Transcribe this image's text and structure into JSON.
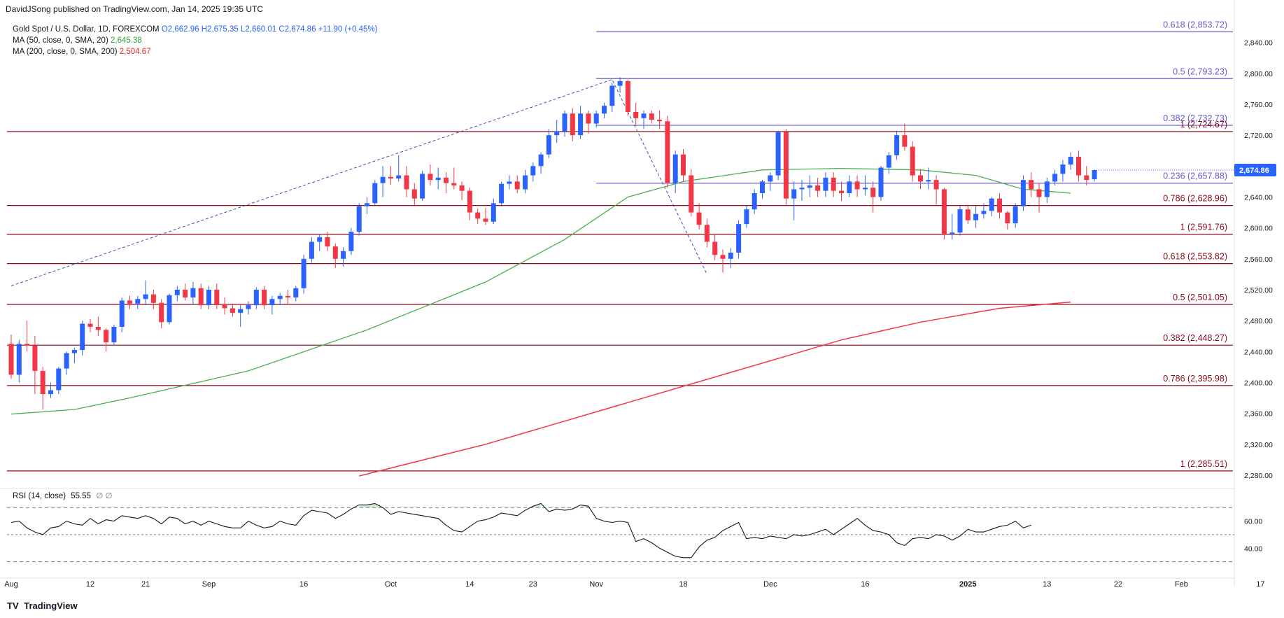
{
  "header": {
    "published": "DavidJSong published on TradingView.com, Jan 14, 2025 19:35 UTC"
  },
  "legend": {
    "symbol": "Gold Spot / U.S. Dollar, 1D, FOREXCOM",
    "open": "O2,662.96",
    "high": "H2,675.35",
    "low": "L2,660.01",
    "close": "C2,674.86",
    "change": "+11.90 (+0.45%)",
    "ma50_label": "MA (50, close, 0, SMA, 20)",
    "ma50_value": "2,645.38",
    "ma200_label": "MA (200, close, 0, SMA, 200)",
    "ma200_value": "2,504.67"
  },
  "rsi_legend": {
    "label": "RSI (14, close)",
    "value": "55.55",
    "extra": "∅ ∅"
  },
  "footer": {
    "brand": "TradingView",
    "brand_mark": "TV"
  },
  "colors": {
    "up": "#2962ff",
    "down": "#f23645",
    "ma50": "#4caf50",
    "ma200": "#f23645",
    "fib_upper": "#6a5acd",
    "fib_lower": "#8b0a1a",
    "rsi": "#131722"
  },
  "chart_data": {
    "type": "candlestick",
    "price_axis": {
      "ylim": [
        2270,
        2875
      ],
      "ticks": [
        "2,280.00",
        "2,320.00",
        "2,360.00",
        "2,400.00",
        "2,440.00",
        "2,480.00",
        "2,520.00",
        "2,560.00",
        "2,600.00",
        "2,640.00",
        "2,680.00",
        "2,720.00",
        "2,760.00",
        "2,800.00",
        "2,840.00"
      ],
      "tick_values": [
        2280,
        2320,
        2360,
        2400,
        2440,
        2480,
        2520,
        2560,
        2600,
        2640,
        2680,
        2720,
        2760,
        2800,
        2840
      ],
      "last_price": "2,674.86",
      "last_price_value": 2674.86
    },
    "x_axis": {
      "labels": [
        "Aug",
        "12",
        "21",
        "Sep",
        "16",
        "Oct",
        "14",
        "23",
        "Nov",
        "18",
        "Dec",
        "16",
        "2025",
        "13",
        "22",
        "Feb",
        "17"
      ],
      "label_bar_index": [
        0,
        10,
        17,
        25,
        37,
        48,
        58,
        66,
        74,
        85,
        96,
        108,
        121,
        131,
        140,
        148,
        158
      ],
      "bold_labels": [
        "2025"
      ]
    },
    "fib_levels_upper": [
      {
        "label": "0.618 (2,853.72)",
        "value": 2853.72
      },
      {
        "label": "0.5 (2,793.23)",
        "value": 2793.23
      },
      {
        "label": "0.382 (2,732.73)",
        "value": 2732.73
      },
      {
        "label": "0.236 (2,657.88)",
        "value": 2657.88
      }
    ],
    "fib_levels_lower": [
      {
        "label": "1 (2,724.67)",
        "value": 2724.67
      },
      {
        "label": "0.786 (2,628.96)",
        "value": 2628.96
      },
      {
        "label": "1 (2,591.76)",
        "value": 2591.76
      },
      {
        "label": "0.618 (2,553.82)",
        "value": 2553.82
      },
      {
        "label": "0.5 (2,501.05)",
        "value": 2501.05
      },
      {
        "label": "0.382 (2,448.27)",
        "value": 2448.27
      },
      {
        "label": "0.786 (2,395.98)",
        "value": 2395.98
      },
      {
        "label": "1 (2,285.51)",
        "value": 2285.51
      }
    ],
    "candles": [
      [
        2450,
        2462,
        2405,
        2410
      ],
      [
        2410,
        2455,
        2400,
        2450
      ],
      [
        2450,
        2480,
        2440,
        2448
      ],
      [
        2448,
        2460,
        2385,
        2415
      ],
      [
        2415,
        2420,
        2365,
        2385
      ],
      [
        2385,
        2400,
        2380,
        2390
      ],
      [
        2390,
        2420,
        2385,
        2418
      ],
      [
        2418,
        2440,
        2410,
        2438
      ],
      [
        2438,
        2445,
        2425,
        2442
      ],
      [
        2442,
        2480,
        2435,
        2476
      ],
      [
        2476,
        2482,
        2465,
        2472
      ],
      [
        2472,
        2485,
        2460,
        2468
      ],
      [
        2468,
        2470,
        2440,
        2452
      ],
      [
        2452,
        2475,
        2448,
        2472
      ],
      [
        2472,
        2510,
        2465,
        2506
      ],
      [
        2506,
        2512,
        2495,
        2502
      ],
      [
        2502,
        2512,
        2495,
        2508
      ],
      [
        2508,
        2532,
        2500,
        2514
      ],
      [
        2514,
        2520,
        2495,
        2503
      ],
      [
        2503,
        2508,
        2470,
        2478
      ],
      [
        2478,
        2515,
        2475,
        2513
      ],
      [
        2513,
        2525,
        2505,
        2520
      ],
      [
        2520,
        2528,
        2506,
        2510
      ],
      [
        2510,
        2530,
        2500,
        2522
      ],
      [
        2522,
        2528,
        2495,
        2500
      ],
      [
        2500,
        2525,
        2495,
        2520
      ],
      [
        2520,
        2528,
        2495,
        2500
      ],
      [
        2500,
        2510,
        2488,
        2496
      ],
      [
        2496,
        2502,
        2485,
        2490
      ],
      [
        2490,
        2500,
        2472,
        2495
      ],
      [
        2495,
        2505,
        2488,
        2500
      ],
      [
        2500,
        2523,
        2495,
        2520
      ],
      [
        2520,
        2525,
        2495,
        2500
      ],
      [
        2500,
        2512,
        2488,
        2508
      ],
      [
        2508,
        2516,
        2500,
        2512
      ],
      [
        2512,
        2520,
        2500,
        2510
      ],
      [
        2510,
        2525,
        2505,
        2522
      ],
      [
        2522,
        2565,
        2515,
        2560
      ],
      [
        2560,
        2588,
        2555,
        2582
      ],
      [
        2582,
        2592,
        2570,
        2588
      ],
      [
        2588,
        2595,
        2570,
        2576
      ],
      [
        2576,
        2580,
        2548,
        2560
      ],
      [
        2560,
        2575,
        2550,
        2570
      ],
      [
        2570,
        2600,
        2565,
        2595
      ],
      [
        2595,
        2632,
        2590,
        2628
      ],
      [
        2628,
        2640,
        2618,
        2632
      ],
      [
        2632,
        2662,
        2628,
        2658
      ],
      [
        2658,
        2680,
        2640,
        2666
      ],
      [
        2666,
        2680,
        2656,
        2664
      ],
      [
        2664,
        2694,
        2660,
        2668
      ],
      [
        2668,
        2680,
        2640,
        2650
      ],
      [
        2650,
        2658,
        2628,
        2638
      ],
      [
        2638,
        2674,
        2635,
        2670
      ],
      [
        2670,
        2682,
        2655,
        2662
      ],
      [
        2662,
        2678,
        2650,
        2665
      ],
      [
        2665,
        2672,
        2645,
        2658
      ],
      [
        2658,
        2678,
        2650,
        2655
      ],
      [
        2655,
        2660,
        2636,
        2648
      ],
      [
        2648,
        2652,
        2610,
        2620
      ],
      [
        2620,
        2625,
        2605,
        2612
      ],
      [
        2612,
        2626,
        2604,
        2608
      ],
      [
        2608,
        2638,
        2605,
        2632
      ],
      [
        2632,
        2660,
        2628,
        2657
      ],
      [
        2657,
        2668,
        2650,
        2660
      ],
      [
        2660,
        2668,
        2645,
        2650
      ],
      [
        2650,
        2675,
        2645,
        2668
      ],
      [
        2668,
        2685,
        2660,
        2680
      ],
      [
        2680,
        2698,
        2670,
        2695
      ],
      [
        2695,
        2728,
        2690,
        2720
      ],
      [
        2720,
        2740,
        2710,
        2725
      ],
      [
        2725,
        2752,
        2718,
        2748
      ],
      [
        2748,
        2755,
        2712,
        2720
      ],
      [
        2720,
        2758,
        2715,
        2748
      ],
      [
        2748,
        2752,
        2722,
        2735
      ],
      [
        2735,
        2752,
        2730,
        2748
      ],
      [
        2748,
        2762,
        2742,
        2758
      ],
      [
        2758,
        2788,
        2750,
        2784
      ],
      [
        2784,
        2795,
        2775,
        2790
      ],
      [
        2790,
        2792,
        2745,
        2750
      ],
      [
        2750,
        2762,
        2732,
        2742
      ],
      [
        2742,
        2752,
        2728,
        2748
      ],
      [
        2748,
        2752,
        2735,
        2740
      ],
      [
        2740,
        2752,
        2728,
        2738
      ],
      [
        2738,
        2745,
        2652,
        2658
      ],
      [
        2658,
        2700,
        2645,
        2695
      ],
      [
        2695,
        2702,
        2660,
        2668
      ],
      [
        2668,
        2676,
        2615,
        2620
      ],
      [
        2620,
        2632,
        2598,
        2604
      ],
      [
        2604,
        2612,
        2575,
        2582
      ],
      [
        2582,
        2592,
        2558,
        2565
      ],
      [
        2565,
        2572,
        2542,
        2560
      ],
      [
        2560,
        2574,
        2548,
        2568
      ],
      [
        2568,
        2610,
        2560,
        2605
      ],
      [
        2605,
        2630,
        2600,
        2624
      ],
      [
        2624,
        2650,
        2618,
        2645
      ],
      [
        2645,
        2662,
        2638,
        2660
      ],
      [
        2660,
        2672,
        2648,
        2668
      ],
      [
        2668,
        2726,
        2662,
        2724
      ],
      [
        2724,
        2728,
        2630,
        2638
      ],
      [
        2638,
        2660,
        2610,
        2650
      ],
      [
        2650,
        2662,
        2635,
        2652
      ],
      [
        2652,
        2668,
        2640,
        2655
      ],
      [
        2655,
        2665,
        2640,
        2648
      ],
      [
        2648,
        2672,
        2640,
        2665
      ],
      [
        2665,
        2672,
        2640,
        2648
      ],
      [
        2648,
        2660,
        2635,
        2645
      ],
      [
        2645,
        2668,
        2640,
        2660
      ],
      [
        2660,
        2668,
        2640,
        2650
      ],
      [
        2650,
        2668,
        2642,
        2652
      ],
      [
        2652,
        2660,
        2620,
        2640
      ],
      [
        2640,
        2680,
        2635,
        2678
      ],
      [
        2678,
        2698,
        2670,
        2694
      ],
      [
        2694,
        2726,
        2688,
        2720
      ],
      [
        2720,
        2735,
        2700,
        2705
      ],
      [
        2705,
        2712,
        2660,
        2668
      ],
      [
        2668,
        2676,
        2650,
        2660
      ],
      [
        2660,
        2678,
        2650,
        2662
      ],
      [
        2662,
        2668,
        2630,
        2650
      ],
      [
        2650,
        2652,
        2585,
        2592
      ],
      [
        2592,
        2618,
        2585,
        2594
      ],
      [
        2594,
        2628,
        2590,
        2624
      ],
      [
        2624,
        2630,
        2605,
        2610
      ],
      [
        2610,
        2628,
        2600,
        2618
      ],
      [
        2618,
        2632,
        2612,
        2622
      ],
      [
        2622,
        2640,
        2615,
        2638
      ],
      [
        2638,
        2645,
        2612,
        2620
      ],
      [
        2620,
        2622,
        2598,
        2606
      ],
      [
        2606,
        2632,
        2600,
        2628
      ],
      [
        2628,
        2668,
        2622,
        2662
      ],
      [
        2662,
        2672,
        2640,
        2650
      ],
      [
        2650,
        2658,
        2620,
        2640
      ],
      [
        2640,
        2665,
        2632,
        2660
      ],
      [
        2660,
        2675,
        2655,
        2670
      ],
      [
        2670,
        2688,
        2660,
        2682
      ],
      [
        2682,
        2698,
        2675,
        2692
      ],
      [
        2692,
        2700,
        2660,
        2668
      ],
      [
        2668,
        2680,
        2655,
        2662
      ],
      [
        2662.96,
        2675.35,
        2660.01,
        2674.86
      ]
    ],
    "ma50": [
      [
        0,
        2359
      ],
      [
        8,
        2365
      ],
      [
        15,
        2380
      ],
      [
        30,
        2415
      ],
      [
        45,
        2468
      ],
      [
        60,
        2530
      ],
      [
        70,
        2585
      ],
      [
        78,
        2640
      ],
      [
        85,
        2660
      ],
      [
        95,
        2675
      ],
      [
        105,
        2677
      ],
      [
        115,
        2675
      ],
      [
        122,
        2668
      ],
      [
        128,
        2650
      ],
      [
        134,
        2645
      ]
    ],
    "ma200": [
      [
        44,
        2279
      ],
      [
        60,
        2320
      ],
      [
        75,
        2365
      ],
      [
        90,
        2410
      ],
      [
        105,
        2455
      ],
      [
        115,
        2478
      ],
      [
        125,
        2496
      ],
      [
        134,
        2504
      ]
    ],
    "fib_trend_dotted": [
      [
        0,
        2525
      ],
      [
        76,
        2792
      ],
      [
        88,
        2540
      ]
    ],
    "rsi": {
      "label": "RSI (14, close)",
      "ylim": [
        20,
        82
      ],
      "ticks": [
        "40.00",
        "60.00"
      ],
      "tick_values": [
        40,
        60
      ],
      "bands": [
        70,
        50,
        30
      ],
      "values": [
        59,
        60,
        55,
        52,
        50,
        55,
        56,
        60,
        58,
        57,
        62,
        58,
        61,
        60,
        64,
        63,
        62,
        64,
        62,
        58,
        63,
        62,
        58,
        60,
        57,
        60,
        58,
        56,
        55,
        55,
        60,
        57,
        55,
        56,
        60,
        58,
        57,
        64,
        68,
        67,
        66,
        62,
        65,
        69,
        72,
        72,
        73,
        70,
        65,
        67,
        66,
        65,
        64,
        63,
        62,
        57,
        53,
        52,
        56,
        60,
        61,
        63,
        66,
        65,
        64,
        68,
        71,
        73,
        67,
        69,
        68,
        69,
        72,
        71,
        62,
        60,
        59,
        60,
        59,
        45,
        47,
        44,
        40,
        37,
        34,
        33,
        33,
        41,
        46,
        48,
        53,
        56,
        59,
        47,
        48,
        47,
        49,
        48,
        47,
        50,
        49,
        50,
        52,
        54,
        50,
        54,
        58,
        62,
        57,
        53,
        52,
        50,
        44,
        42,
        47,
        48,
        47,
        50,
        49,
        46,
        49,
        54,
        52,
        52,
        54,
        56,
        57,
        60,
        55,
        57
      ]
    }
  }
}
